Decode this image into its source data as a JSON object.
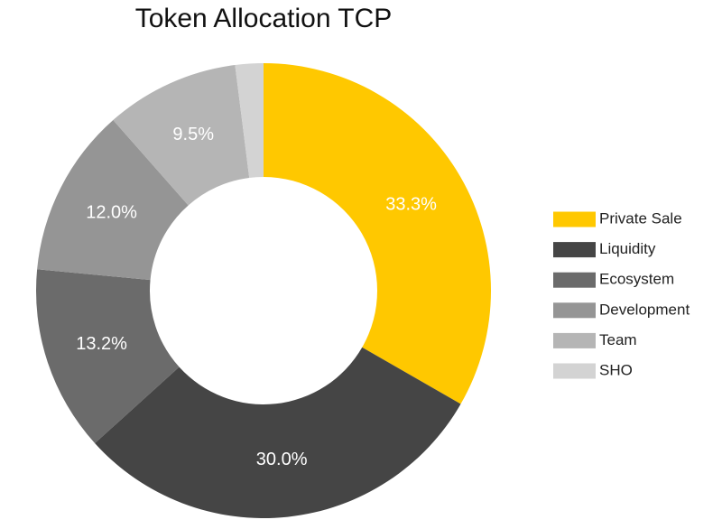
{
  "chart_data": {
    "type": "pie",
    "title": "Token Allocation TCP",
    "categories": [
      "Private Sale",
      "Liquidity",
      "Ecosystem",
      "Development",
      "Team",
      "SHO"
    ],
    "values": [
      33.3,
      30.0,
      13.2,
      12.0,
      9.5,
      2.0
    ],
    "value_labels": [
      "33.3%",
      "30.0%",
      "13.2%",
      "12.0%",
      "9.5%",
      null
    ],
    "colors": [
      "#ffc800",
      "#454545",
      "#6b6b6b",
      "#959595",
      "#b5b5b5",
      "#d3d3d3"
    ],
    "legend": "right"
  }
}
